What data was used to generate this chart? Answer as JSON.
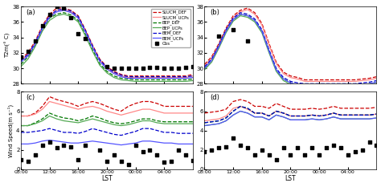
{
  "panel_a": {
    "label": "(a)",
    "ylabel": "T2m(° C)",
    "ylim": [
      28,
      38
    ],
    "yticks": [
      28,
      30,
      32,
      34,
      36,
      38
    ],
    "SLUCM_DEF": [
      31.2,
      32.0,
      33.5,
      35.5,
      37.0,
      37.8,
      37.8,
      37.5,
      36.8,
      35.0,
      33.0,
      31.2,
      30.2,
      29.6,
      29.2,
      29.0,
      29.0,
      29.0,
      29.0,
      29.0,
      29.0,
      29.0,
      29.0,
      29.0,
      29.2
    ],
    "SLUCM_UCPs": [
      31.0,
      31.8,
      33.3,
      35.3,
      36.8,
      37.5,
      37.6,
      37.3,
      36.5,
      34.8,
      32.8,
      31.0,
      30.0,
      29.4,
      29.0,
      28.8,
      28.8,
      28.8,
      28.8,
      28.8,
      28.8,
      28.8,
      28.8,
      28.8,
      29.0
    ],
    "BEP_DEF": [
      30.5,
      31.5,
      33.0,
      35.0,
      36.5,
      37.0,
      37.2,
      36.9,
      36.2,
      34.4,
      32.4,
      30.6,
      29.6,
      29.0,
      28.7,
      28.6,
      28.5,
      28.5,
      28.5,
      28.5,
      28.5,
      28.5,
      28.5,
      28.5,
      28.6
    ],
    "BEP_UCPs": [
      30.2,
      31.2,
      32.8,
      34.8,
      36.2,
      36.8,
      37.0,
      36.7,
      36.0,
      34.2,
      32.2,
      30.4,
      29.4,
      28.8,
      28.5,
      28.4,
      28.3,
      28.3,
      28.3,
      28.3,
      28.3,
      28.3,
      28.3,
      28.3,
      28.4
    ],
    "BEM_DEF": [
      31.0,
      31.8,
      33.3,
      35.3,
      36.8,
      37.5,
      37.7,
      37.4,
      36.7,
      34.9,
      32.9,
      31.1,
      30.1,
      29.5,
      29.1,
      28.9,
      28.9,
      28.9,
      28.9,
      28.9,
      28.9,
      28.9,
      28.9,
      28.9,
      29.0
    ],
    "BEM_UCPs": [
      30.8,
      31.6,
      33.1,
      35.1,
      36.6,
      37.3,
      37.5,
      37.2,
      36.5,
      34.7,
      32.7,
      30.9,
      29.9,
      29.3,
      28.9,
      28.7,
      28.7,
      28.7,
      28.7,
      28.7,
      28.7,
      28.7,
      28.7,
      28.7,
      28.8
    ],
    "Obs": [
      31.5,
      32.2,
      33.5,
      35.5,
      37.0,
      38.0,
      37.8,
      36.5,
      34.5,
      33.8,
      null,
      null,
      30.2,
      30.0,
      30.0,
      30.0,
      30.0,
      30.0,
      30.1,
      30.1,
      30.0,
      30.0,
      30.0,
      30.1,
      30.2
    ]
  },
  "panel_b": {
    "label": "(b)",
    "ylabel": "",
    "ylim": [
      28,
      38
    ],
    "yticks": [
      28,
      30,
      32,
      34,
      36,
      38
    ],
    "SLUCM_DEF": [
      30.5,
      31.5,
      33.2,
      35.2,
      36.8,
      37.5,
      37.8,
      37.2,
      35.8,
      33.2,
      30.8,
      29.5,
      29.0,
      28.8,
      28.5,
      28.5,
      28.5,
      28.5,
      28.5,
      28.5,
      28.5,
      28.5,
      28.6,
      28.7,
      28.9
    ],
    "SLUCM_UCPs": [
      30.3,
      31.3,
      33.0,
      35.0,
      36.6,
      37.3,
      37.6,
      37.0,
      35.6,
      33.0,
      30.6,
      29.3,
      28.8,
      28.6,
      28.3,
      28.3,
      28.3,
      28.3,
      28.3,
      28.3,
      28.3,
      28.3,
      28.4,
      28.5,
      28.7
    ],
    "BEP_DEF": [
      30.0,
      31.0,
      32.8,
      34.8,
      36.3,
      37.0,
      36.8,
      36.2,
      34.8,
      32.2,
      29.8,
      28.6,
      28.1,
      27.9,
      27.8,
      27.8,
      27.8,
      27.8,
      27.8,
      27.8,
      27.8,
      27.8,
      27.9,
      28.0,
      28.2
    ],
    "BEP_UCPs": [
      29.8,
      30.8,
      32.6,
      34.6,
      36.1,
      36.8,
      36.6,
      36.0,
      34.6,
      32.0,
      29.6,
      28.4,
      27.9,
      27.7,
      27.6,
      27.6,
      27.6,
      27.6,
      27.6,
      27.6,
      27.6,
      27.6,
      27.7,
      27.8,
      28.0
    ],
    "BEM_DEF": [
      30.2,
      31.2,
      33.0,
      35.0,
      36.5,
      37.2,
      37.0,
      36.4,
      35.0,
      32.4,
      30.0,
      28.8,
      28.3,
      28.1,
      28.0,
      28.0,
      28.0,
      28.0,
      28.0,
      28.0,
      28.0,
      28.0,
      28.1,
      28.2,
      28.4
    ],
    "BEM_UCPs": [
      30.0,
      31.0,
      32.8,
      34.8,
      36.3,
      37.0,
      36.8,
      36.2,
      34.8,
      32.2,
      29.8,
      28.6,
      28.1,
      27.9,
      27.8,
      27.8,
      27.8,
      27.8,
      27.8,
      27.8,
      27.8,
      27.8,
      27.9,
      28.0,
      28.2
    ],
    "Obs": [
      null,
      null,
      34.2,
      null,
      35.0,
      null,
      33.5,
      null,
      null,
      null,
      null,
      null,
      null,
      null,
      null,
      null,
      null,
      null,
      null,
      null,
      null,
      null,
      null,
      null,
      null
    ]
  },
  "panel_c": {
    "label": "(c)",
    "ylabel": "Wind Speed(m s⁻¹)",
    "ylim": [
      0,
      8
    ],
    "yticks": [
      0,
      2,
      4,
      6,
      8
    ],
    "SLUCM_DEF": [
      5.5,
      5.5,
      5.8,
      6.5,
      7.5,
      7.2,
      7.0,
      6.8,
      6.5,
      6.8,
      7.0,
      6.8,
      6.5,
      6.2,
      6.0,
      6.5,
      6.8,
      7.0,
      7.0,
      6.8,
      6.5,
      6.5,
      6.5,
      6.5,
      6.5
    ],
    "SLUCM_UCPs": [
      5.5,
      5.5,
      5.7,
      6.2,
      7.0,
      6.8,
      6.6,
      6.4,
      6.2,
      6.4,
      6.5,
      6.3,
      6.0,
      5.8,
      5.6,
      5.8,
      6.0,
      6.2,
      6.2,
      6.0,
      5.8,
      5.8,
      5.8,
      5.8,
      5.8
    ],
    "BEP_DEF": [
      4.5,
      4.5,
      4.8,
      5.2,
      5.8,
      5.5,
      5.3,
      5.2,
      5.0,
      5.2,
      5.5,
      5.3,
      5.0,
      4.8,
      4.7,
      4.8,
      5.0,
      5.2,
      5.2,
      5.0,
      4.9,
      4.9,
      4.9,
      4.9,
      4.9
    ],
    "BEP_UCPs": [
      4.5,
      4.5,
      4.7,
      5.0,
      5.5,
      5.2,
      5.0,
      4.9,
      4.8,
      5.0,
      5.2,
      5.0,
      4.8,
      4.6,
      4.5,
      4.6,
      4.8,
      5.0,
      5.0,
      4.8,
      4.7,
      4.7,
      4.7,
      4.7,
      4.7
    ],
    "BEM_DEF": [
      3.8,
      3.8,
      3.9,
      4.0,
      4.2,
      4.0,
      3.8,
      3.8,
      3.7,
      3.9,
      4.2,
      4.0,
      3.8,
      3.6,
      3.5,
      3.7,
      3.9,
      4.2,
      4.2,
      4.0,
      3.8,
      3.8,
      3.7,
      3.7,
      3.7
    ],
    "BEM_UCPs": [
      2.6,
      2.6,
      2.7,
      2.9,
      3.0,
      2.9,
      2.8,
      2.7,
      2.7,
      2.8,
      2.9,
      2.8,
      2.7,
      2.6,
      2.5,
      2.6,
      2.7,
      2.9,
      2.9,
      2.8,
      2.7,
      2.7,
      2.6,
      2.6,
      2.6
    ],
    "Obs": [
      1.0,
      0.8,
      1.5,
      2.5,
      2.8,
      2.2,
      2.5,
      2.3,
      1.0,
      2.5,
      null,
      2.0,
      0.8,
      1.5,
      0.8,
      0.5,
      2.5,
      1.8,
      2.0,
      1.5,
      0.7,
      0.8,
      2.0,
      1.5,
      0.9
    ]
  },
  "panel_d": {
    "label": "(d)",
    "ylabel": "",
    "ylim": [
      0,
      8
    ],
    "yticks": [
      0,
      2,
      4,
      6,
      8
    ],
    "SLUCM_DEF": [
      5.8,
      5.9,
      6.0,
      6.2,
      7.0,
      7.2,
      7.0,
      6.5,
      6.5,
      6.3,
      6.8,
      6.5,
      6.2,
      6.2,
      6.2,
      6.3,
      6.2,
      6.3,
      6.5,
      6.3,
      6.3,
      6.3,
      6.3,
      6.3,
      6.4
    ],
    "SLUCM_UCPs": [
      5.0,
      5.1,
      5.2,
      5.5,
      6.3,
      6.5,
      6.2,
      5.8,
      5.8,
      5.5,
      6.0,
      5.8,
      5.5,
      5.5,
      5.5,
      5.6,
      5.5,
      5.6,
      5.8,
      5.6,
      5.6,
      5.6,
      5.6,
      5.6,
      5.7
    ],
    "BEP_DEF": [
      4.8,
      4.9,
      5.0,
      5.3,
      6.0,
      6.5,
      6.3,
      5.8,
      5.8,
      5.5,
      6.0,
      5.8,
      5.5,
      5.5,
      5.5,
      5.6,
      5.5,
      5.6,
      5.8,
      5.6,
      5.6,
      5.6,
      5.6,
      5.6,
      5.7
    ],
    "BEP_UCPs": [
      4.5,
      4.6,
      4.7,
      5.0,
      5.6,
      6.0,
      5.8,
      5.4,
      5.4,
      5.1,
      5.6,
      5.4,
      5.1,
      5.1,
      5.1,
      5.2,
      5.1,
      5.2,
      5.4,
      5.2,
      5.2,
      5.2,
      5.2,
      5.2,
      5.3
    ],
    "BEM_DEF": [
      4.8,
      4.9,
      5.0,
      5.3,
      6.0,
      6.5,
      6.3,
      5.8,
      5.8,
      5.5,
      6.0,
      5.8,
      5.5,
      5.5,
      5.5,
      5.6,
      5.5,
      5.6,
      5.8,
      5.6,
      5.6,
      5.6,
      5.6,
      5.6,
      5.7
    ],
    "BEM_UCPs": [
      4.5,
      4.6,
      4.7,
      5.0,
      5.6,
      6.0,
      5.8,
      5.4,
      5.4,
      5.1,
      5.6,
      5.4,
      5.1,
      5.1,
      5.1,
      5.2,
      5.1,
      5.2,
      5.4,
      5.2,
      5.2,
      5.2,
      5.2,
      5.2,
      5.3
    ],
    "Obs": [
      1.8,
      2.0,
      2.2,
      2.3,
      3.2,
      2.5,
      2.2,
      1.5,
      2.0,
      1.5,
      1.0,
      2.2,
      1.5,
      2.2,
      1.5,
      2.2,
      1.5,
      2.2,
      2.5,
      2.2,
      1.5,
      1.8,
      2.0,
      2.8,
      2.5
    ]
  },
  "x_tick_labels": [
    "08:00",
    "12:00",
    "16:00",
    "20:00",
    "00:00",
    "04:00"
  ],
  "x_tick_pos": [
    0,
    4,
    8,
    12,
    16,
    20
  ],
  "colors": {
    "SLUCM_DEF": "#cc0000",
    "SLUCM_UCPs": "#ff8888",
    "BEP_DEF": "#007700",
    "BEP_UCPs": "#55aa55",
    "BEM_DEF": "#0000cc",
    "BEM_UCPs": "#5555ff",
    "Obs": "#000000"
  },
  "line_styles": {
    "SLUCM_DEF": "--",
    "SLUCM_UCPs": "-",
    "BEP_DEF": "--",
    "BEP_UCPs": "-",
    "BEM_DEF": "--",
    "BEM_UCPs": "-"
  },
  "background_color": "#f0f0f0"
}
